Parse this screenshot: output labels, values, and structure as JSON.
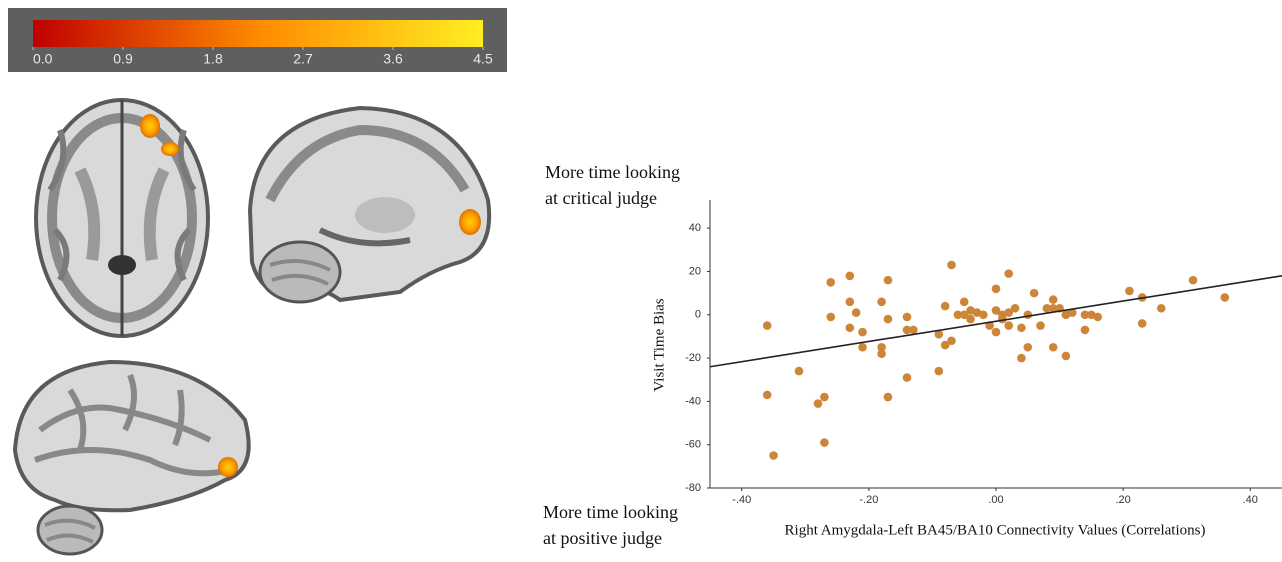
{
  "colorbar": {
    "lim": [
      0,
      4.5
    ],
    "colors": [
      "#c00000",
      "#ff8a00",
      "#ffee22"
    ],
    "ticks": [
      {
        "value": 0,
        "label": "0.0"
      },
      {
        "value": 0.9,
        "label": "0.9"
      },
      {
        "value": 1.8,
        "label": "1.8"
      },
      {
        "value": 2.7,
        "label": "2.7"
      },
      {
        "value": 3.6,
        "label": "3.6"
      },
      {
        "value": 4.5,
        "label": "4.5"
      }
    ]
  },
  "chart_data": {
    "type": "scatter",
    "xlabel": "Right Amygdala-Left BA45/BA10 Connectivity Values (Correlations)",
    "ylabel": "Visit Time Bias",
    "annotations": [
      [
        "More time looking",
        "at critical judge"
      ],
      [
        "More time looking",
        "at positive judge"
      ]
    ],
    "color": "#cd8638",
    "xlim": [
      -0.45,
      0.45
    ],
    "ylim": [
      -80,
      53
    ],
    "xticks": [
      {
        "value": -0.4,
        "label": "-.40"
      },
      {
        "value": -0.2,
        "label": "-.20"
      },
      {
        "value": 0,
        "label": ".00"
      },
      {
        "value": 0.2,
        "label": ".20"
      },
      {
        "value": 0.4,
        "label": ".40"
      }
    ],
    "yticks": [
      -80,
      -60,
      -40,
      -20,
      0,
      20,
      40
    ],
    "x": [
      -0.36,
      -0.35,
      -0.36,
      -0.31,
      -0.28,
      -0.27,
      -0.27,
      -0.26,
      -0.26,
      -0.23,
      -0.23,
      -0.23,
      -0.22,
      -0.21,
      -0.21,
      -0.18,
      -0.18,
      -0.18,
      -0.17,
      -0.17,
      -0.17,
      -0.14,
      -0.14,
      -0.14,
      -0.13,
      -0.09,
      -0.09,
      -0.08,
      -0.08,
      -0.07,
      -0.07,
      -0.06,
      -0.05,
      -0.05,
      -0.04,
      -0.04,
      -0.03,
      -0.02,
      -0.01,
      0.0,
      0.0,
      0.0,
      0.01,
      0.01,
      0.02,
      0.02,
      0.02,
      0.03,
      0.04,
      0.04,
      0.05,
      0.05,
      0.06,
      0.07,
      0.08,
      0.09,
      0.09,
      0.09,
      0.1,
      0.11,
      0.11,
      0.11,
      0.12,
      0.14,
      0.14,
      0.15,
      0.16,
      0.21,
      0.23,
      0.23,
      0.26,
      0.31,
      0.36
    ],
    "values": [
      -5,
      -65,
      -37,
      -26,
      -41,
      -38,
      -59,
      15,
      -1,
      6,
      18,
      -6,
      1,
      -15,
      -8,
      6,
      -15,
      -18,
      -2,
      16,
      -38,
      -7,
      -29,
      -1,
      -7,
      -9,
      -26,
      4,
      -14,
      23,
      -12,
      0,
      0,
      6,
      -2,
      2,
      1,
      0,
      -5,
      -8,
      2,
      12,
      -2,
      0,
      19,
      1,
      -5,
      3,
      -20,
      -6,
      -15,
      0,
      10,
      -5,
      3,
      7,
      3,
      -15,
      3,
      0,
      -19,
      0,
      1,
      0,
      -7,
      0,
      -1,
      11,
      8,
      -4,
      3,
      16,
      8
    ],
    "trend_line": {
      "x": [
        -0.45,
        0.45
      ],
      "values": [
        -24,
        18
      ],
      "color": "#222222"
    }
  }
}
